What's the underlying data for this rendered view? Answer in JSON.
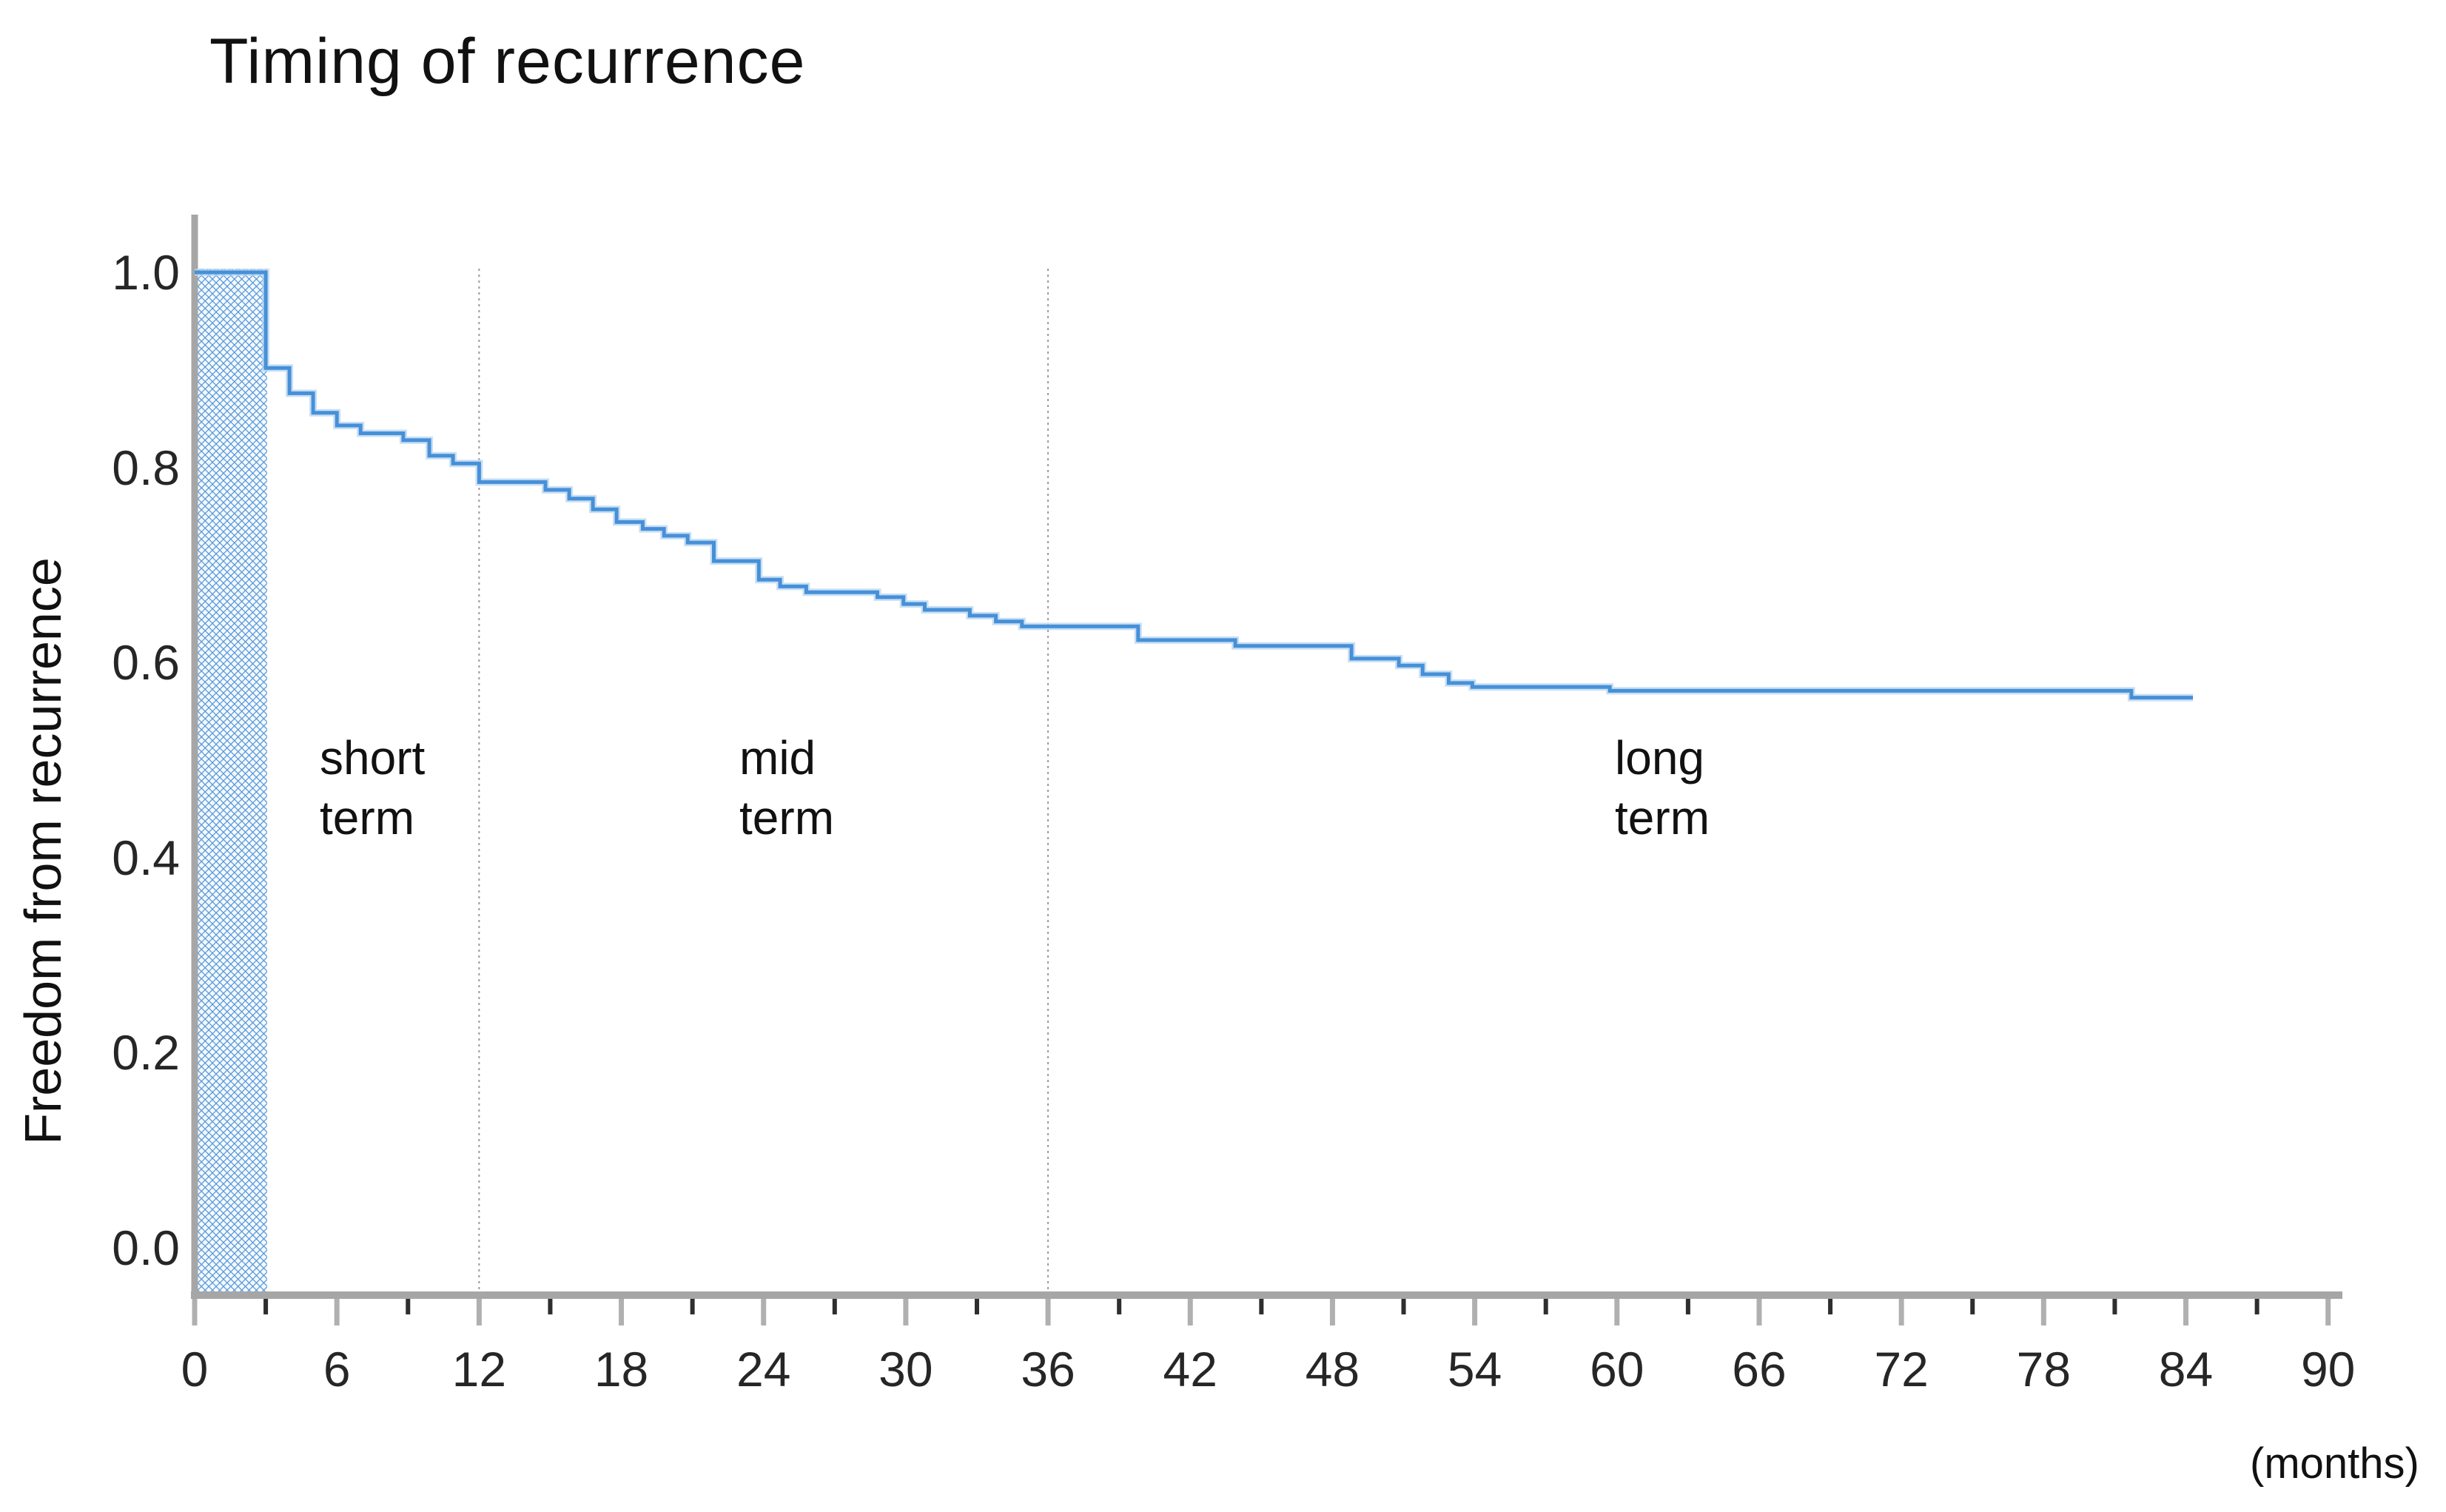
{
  "title": "Timing of recurrence",
  "y_axis": {
    "label": "Freedom from recurrence",
    "ticks": [
      "1.0",
      "0.8",
      "0.6",
      "0.4",
      "0.2",
      "0.0"
    ],
    "tick_values": [
      1.0,
      0.8,
      0.6,
      0.4,
      0.2,
      0.0
    ]
  },
  "x_axis": {
    "unit_label": "(months)",
    "major_ticks": [
      0,
      6,
      12,
      18,
      24,
      30,
      36,
      42,
      48,
      54,
      60,
      66,
      72,
      78,
      84,
      90
    ],
    "minor_ticks": [
      3,
      9,
      15,
      21,
      27,
      33,
      39,
      45,
      51,
      57,
      63,
      69,
      75,
      81,
      87
    ]
  },
  "regions": {
    "short": {
      "label": "short\nterm",
      "boundary_months": [
        0,
        12
      ]
    },
    "mid": {
      "label": "mid\nterm",
      "boundary_months": [
        12,
        36
      ]
    },
    "long": {
      "label": "long\nterm",
      "boundary_months": [
        36,
        90
      ]
    }
  },
  "shaded_band": {
    "from_month": 0,
    "to_month": 3.05,
    "meaning": "hatched band at start of follow-up"
  },
  "gridlines_months": [
    12,
    36
  ],
  "colors": {
    "curve": "#4690d8",
    "curve_halo": "#b5d4f0",
    "hatch_line": "#4f93d6",
    "hatch_bg": "#f4f9fe",
    "axis": "#a6a6a6",
    "major_tick": "#b0b0b0",
    "minor_tick": "#2e2e2e",
    "gridline": "#9a9a9a",
    "text": "#1a1a1a"
  },
  "chart_data": {
    "type": "line",
    "subtype": "kaplan-meier-step",
    "title": "Timing of recurrence",
    "xlabel": "(months)",
    "ylabel": "Freedom from recurrence",
    "xlim": [
      0,
      90
    ],
    "ylim": [
      0.0,
      1.0
    ],
    "grid": "vertical dotted lines at 12 and 36 months only",
    "legend": "none",
    "end_month": 84.3,
    "steps": [
      {
        "t": 0,
        "v": 1.0
      },
      {
        "t": 3.0,
        "v": 0.902
      },
      {
        "t": 4.0,
        "v": 0.876
      },
      {
        "t": 5.0,
        "v": 0.856
      },
      {
        "t": 6.0,
        "v": 0.843
      },
      {
        "t": 7.0,
        "v": 0.835
      },
      {
        "t": 8.8,
        "v": 0.828
      },
      {
        "t": 9.9,
        "v": 0.812
      },
      {
        "t": 10.9,
        "v": 0.804
      },
      {
        "t": 12.0,
        "v": 0.785
      },
      {
        "t": 14.8,
        "v": 0.777
      },
      {
        "t": 15.8,
        "v": 0.768
      },
      {
        "t": 16.8,
        "v": 0.757
      },
      {
        "t": 17.8,
        "v": 0.744
      },
      {
        "t": 18.9,
        "v": 0.737
      },
      {
        "t": 19.8,
        "v": 0.73
      },
      {
        "t": 20.8,
        "v": 0.723
      },
      {
        "t": 21.9,
        "v": 0.704
      },
      {
        "t": 23.8,
        "v": 0.685
      },
      {
        "t": 24.7,
        "v": 0.678
      },
      {
        "t": 25.8,
        "v": 0.672
      },
      {
        "t": 28.8,
        "v": 0.667
      },
      {
        "t": 29.9,
        "v": 0.66
      },
      {
        "t": 30.8,
        "v": 0.654
      },
      {
        "t": 32.7,
        "v": 0.648
      },
      {
        "t": 33.8,
        "v": 0.642
      },
      {
        "t": 34.9,
        "v": 0.637
      },
      {
        "t": 39.8,
        "v": 0.623
      },
      {
        "t": 43.9,
        "v": 0.617
      },
      {
        "t": 48.8,
        "v": 0.604
      },
      {
        "t": 50.8,
        "v": 0.597
      },
      {
        "t": 51.8,
        "v": 0.588
      },
      {
        "t": 52.9,
        "v": 0.579
      },
      {
        "t": 53.9,
        "v": 0.575
      },
      {
        "t": 59.7,
        "v": 0.571
      },
      {
        "t": 81.7,
        "v": 0.564
      }
    ]
  }
}
